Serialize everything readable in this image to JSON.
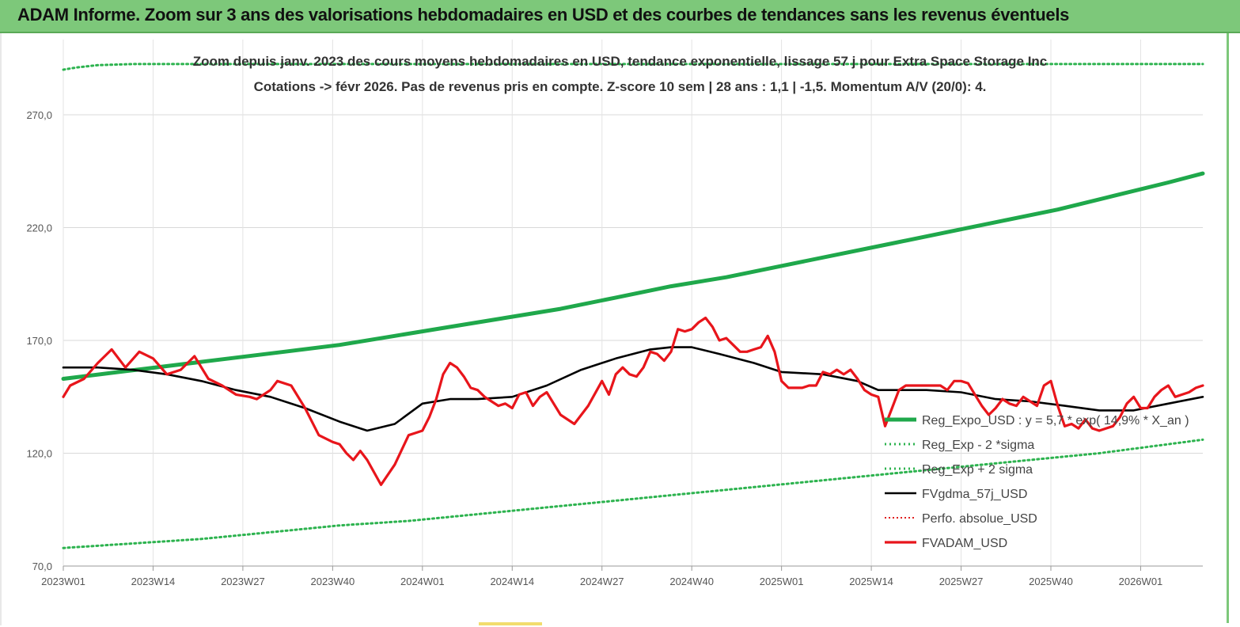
{
  "header": {
    "title": "ADAM Informe. Zoom sur 3 ans des valorisations hebdomadaires en USD et des courbes de tendances sans les revenus éventuels"
  },
  "colors": {
    "header_bg": "#7dc87a",
    "reg_expo": "#1fa84b",
    "sigma": "#2db34f",
    "fv_gdma": "#000000",
    "perfo": "#e02020",
    "fvadam": "#e8151b"
  },
  "chart_data": {
    "type": "line",
    "subtitle_line1": "Zoom depuis janv. 2023 des cours moyens hebdomadaires en USD, tendance exponentielle, lissage 57 j pour Extra Space Storage Inc",
    "subtitle_line2": "Cotations -> févr 2026.  Pas de revenus pris en compte. Z-score 10 sem  | 28 ans : 1,1 | -1,5. Momentum A/V (20/0): 4.",
    "ylim": [
      70,
      270
    ],
    "y_ticks": [
      "70,0",
      "120,0",
      "170,0",
      "220,0",
      "270,0"
    ],
    "y_tick_values": [
      70,
      120,
      170,
      220,
      270
    ],
    "x_ticks": [
      "2023W01",
      "2023W14",
      "2023W27",
      "2023W40",
      "2024W01",
      "2024W14",
      "2024W27",
      "2024W40",
      "2025W01",
      "2025W14",
      "2025W27",
      "2025W40",
      "2026W01"
    ],
    "x_tick_weeks": [
      0,
      13,
      26,
      39,
      52,
      65,
      78,
      91,
      104,
      117,
      130,
      143,
      156
    ],
    "week_count": 165,
    "grid": "vertical-and-horizontal",
    "legend_position": "right",
    "series": [
      {
        "name": "Reg_Expo_USD : y = 5,7 * exp( 14,9% * X_an )",
        "style": "solid-thick",
        "x": [
          0,
          8,
          16,
          24,
          32,
          40,
          48,
          56,
          64,
          72,
          80,
          88,
          96,
          104,
          112,
          120,
          128,
          136,
          144,
          152,
          160,
          165
        ],
        "y": [
          153,
          156,
          159,
          162,
          165,
          168,
          172,
          176,
          180,
          184,
          189,
          194,
          198,
          203,
          208,
          213,
          218,
          223,
          228,
          234,
          240,
          244
        ]
      },
      {
        "name": "Reg_Exp - 2 *sigma",
        "style": "dotted",
        "x": [
          0,
          10,
          20,
          30,
          40,
          50,
          60,
          70,
          80,
          90,
          100,
          110,
          120,
          130,
          140,
          150,
          160,
          165
        ],
        "y": [
          78,
          80,
          82,
          85,
          88,
          90,
          93,
          96,
          99,
          102,
          105,
          108,
          111,
          114,
          117,
          120,
          124,
          126
        ]
      },
      {
        "name": "Reg_Exp + 2 sigma",
        "style": "dotted",
        "x": [
          0,
          2,
          5,
          10,
          17,
          165
        ],
        "y": [
          290,
          291,
          292,
          292.5,
          292.5,
          292.5
        ]
      },
      {
        "name": "FVgdma_57j_USD",
        "style": "solid",
        "x": [
          0,
          5,
          10,
          15,
          20,
          25,
          30,
          35,
          40,
          44,
          48,
          52,
          56,
          60,
          65,
          70,
          75,
          80,
          85,
          88,
          91,
          95,
          100,
          104,
          110,
          115,
          118,
          125,
          130,
          135,
          140,
          145,
          150,
          155,
          160,
          165
        ],
        "y": [
          158,
          158,
          157,
          155,
          152,
          148,
          145,
          140,
          134,
          130,
          133,
          142,
          144,
          144,
          145,
          150,
          157,
          162,
          166,
          167,
          167,
          164,
          160,
          156,
          155,
          152,
          148,
          148,
          147,
          144,
          143,
          141,
          139,
          139,
          142,
          145
        ]
      },
      {
        "name": "Perfo. absolue_USD",
        "style": "dotted",
        "x": [],
        "y": []
      },
      {
        "name": "FVADAM_USD",
        "style": "solid-thick",
        "x": [
          0,
          1,
          3,
          5,
          7,
          9,
          11,
          13,
          15,
          17,
          19,
          21,
          23,
          25,
          27,
          28,
          30,
          31,
          33,
          35,
          37,
          39,
          40,
          41,
          42,
          43,
          44,
          46,
          48,
          50,
          51,
          52,
          53,
          54,
          55,
          56,
          57,
          58,
          59,
          60,
          61,
          62,
          63,
          64,
          65,
          66,
          67,
          68,
          69,
          70,
          72,
          74,
          76,
          78,
          79,
          80,
          81,
          82,
          83,
          84,
          85,
          86,
          87,
          88,
          89,
          90,
          91,
          92,
          93,
          94,
          95,
          96,
          97,
          98,
          99,
          100,
          101,
          102,
          103,
          104,
          105,
          106,
          107,
          108,
          109,
          110,
          111,
          112,
          113,
          114,
          115,
          116,
          117,
          118,
          119,
          120,
          121,
          122,
          123,
          124,
          125,
          126,
          127,
          128,
          129,
          130,
          131,
          132,
          133,
          134,
          135,
          136,
          137,
          138,
          139,
          140,
          141,
          142,
          143,
          144,
          145,
          146,
          147,
          148,
          149,
          150,
          151,
          152,
          153,
          154,
          155,
          156,
          157,
          158,
          159,
          160,
          161,
          162,
          163,
          164,
          165
        ],
        "y": [
          145,
          150,
          153,
          160,
          166,
          158,
          165,
          162,
          155,
          157,
          163,
          153,
          150,
          146,
          145,
          144,
          148,
          152,
          150,
          140,
          128,
          125,
          124,
          120,
          117,
          121,
          117,
          106,
          115,
          128,
          129,
          130,
          136,
          144,
          155,
          160,
          158,
          154,
          149,
          148,
          145,
          143,
          141,
          142,
          140,
          146,
          147,
          141,
          145,
          147,
          137,
          133,
          141,
          152,
          146,
          155,
          158,
          155,
          154,
          158,
          165,
          164,
          161,
          165,
          175,
          174,
          175,
          178,
          180,
          176,
          170,
          171,
          168,
          165,
          165,
          166,
          167,
          172,
          165,
          152,
          149,
          149,
          149,
          150,
          150,
          156,
          155,
          157,
          155,
          157,
          153,
          148,
          146,
          145,
          132,
          140,
          148,
          150,
          150,
          150,
          150,
          150,
          150,
          148,
          152,
          152,
          151,
          146,
          141,
          137,
          140,
          144,
          142,
          141,
          145,
          143,
          141,
          150,
          152,
          141,
          132,
          133,
          131,
          135,
          131,
          130,
          131,
          132,
          136,
          142,
          145,
          140,
          140,
          145,
          148,
          150,
          145,
          146,
          147,
          149,
          150
        ]
      }
    ]
  }
}
